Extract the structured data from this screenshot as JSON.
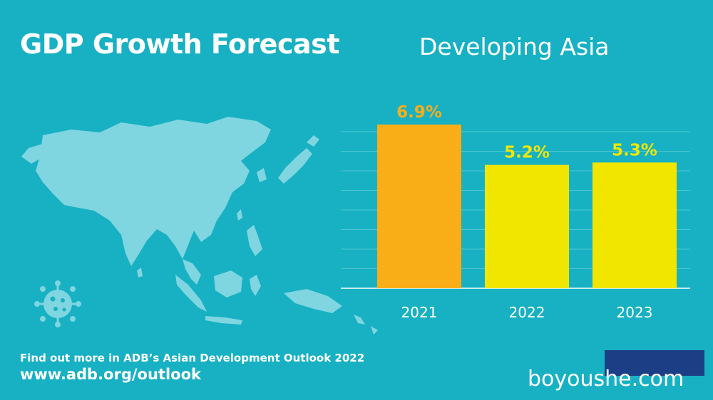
{
  "header": {
    "title": "GDP Growth Forecast",
    "subtitle": "Developing Asia"
  },
  "footer": {
    "line1": "Find out more in ADB’s Asian Development Outlook 2022",
    "url": "www.adb.org/outlook"
  },
  "watermark": {
    "text": "boyoushe.com",
    "cn": "菠华网"
  },
  "icons": {
    "map": "asia-map-icon",
    "virus": "virus-icon"
  },
  "colors": {
    "background": "#17b1c3",
    "bar_2021": "#f9ae18",
    "bar_other": "#f1e600",
    "label_2021": "#f9ae18",
    "label_other": "#f1e600",
    "map": "#7fd5e0"
  },
  "chart_data": {
    "type": "bar",
    "categories": [
      "2021",
      "2022",
      "2023"
    ],
    "values": [
      6.9,
      5.2,
      5.3
    ],
    "data_labels": [
      "6.9%",
      "5.2%",
      "5.3%"
    ],
    "title": "Developing Asia",
    "xlabel": "",
    "ylabel": "",
    "ylim": [
      0,
      7.5
    ],
    "grid": true,
    "legend": "none"
  }
}
